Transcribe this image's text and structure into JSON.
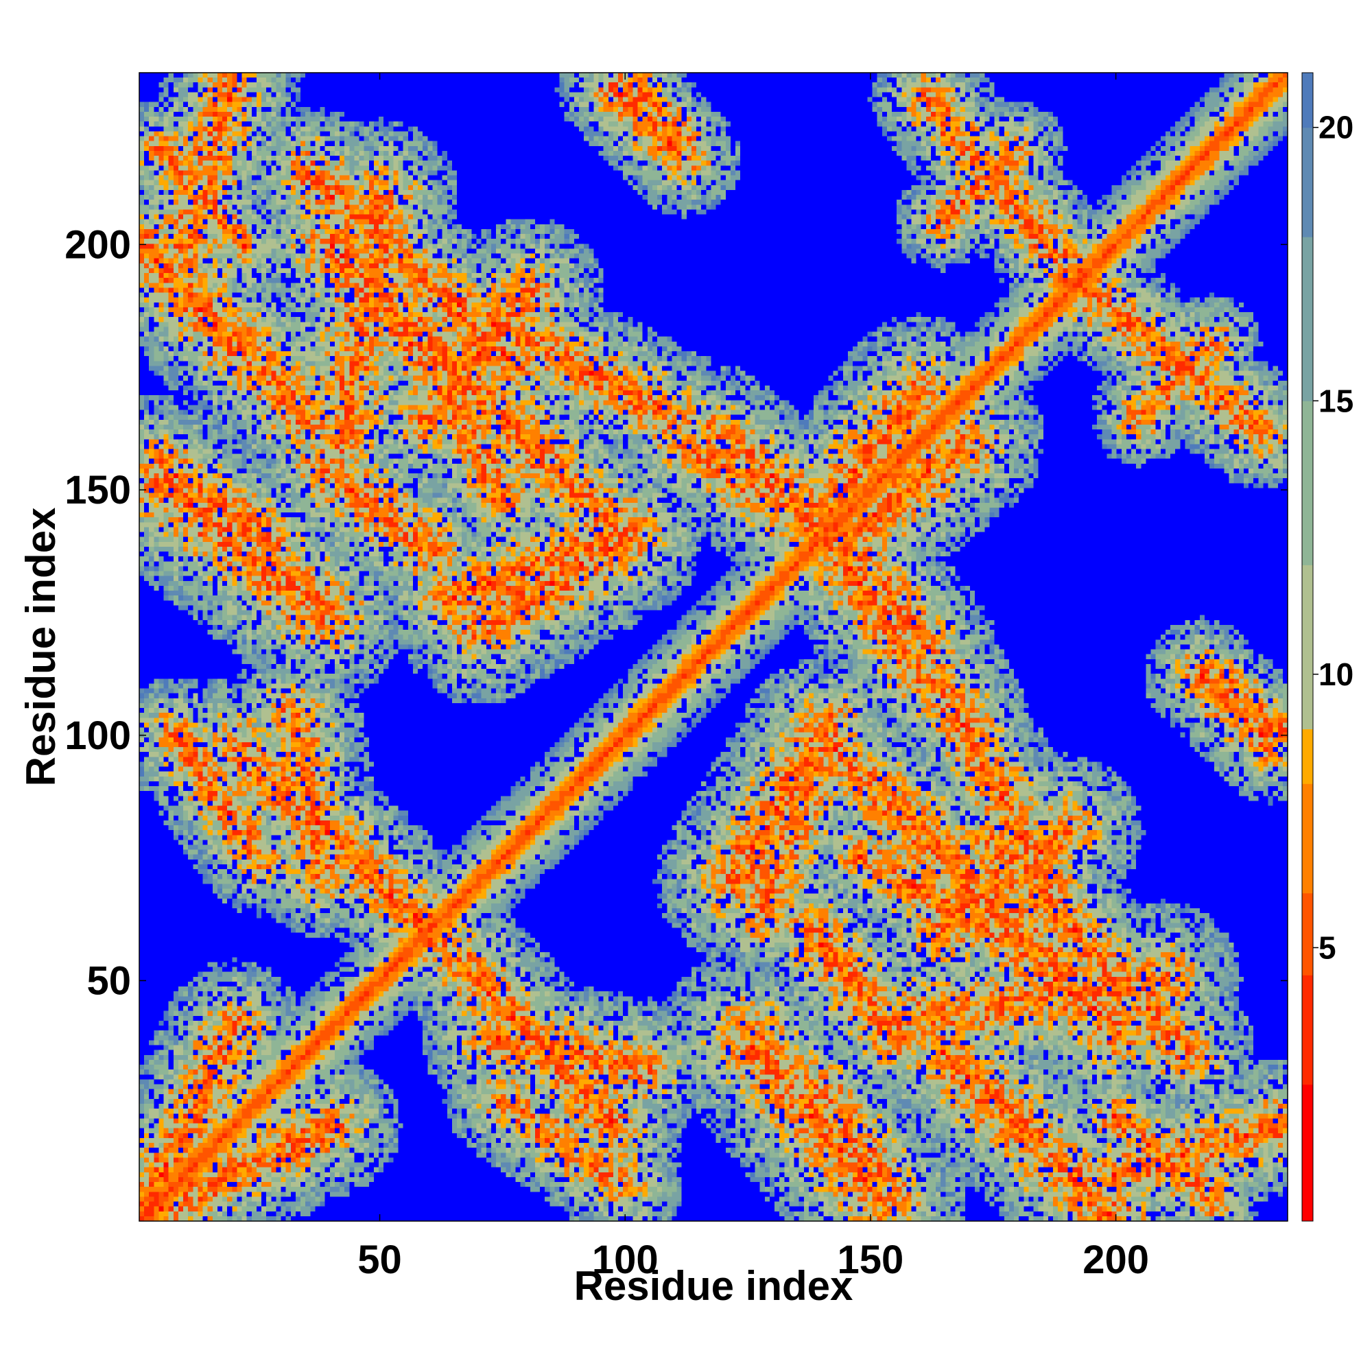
{
  "chart_data": {
    "type": "heatmap",
    "title": "",
    "xlabel": "Residue index",
    "ylabel": "Residue index",
    "xlim": [
      1,
      235
    ],
    "ylim": [
      1,
      235
    ],
    "x_ticks": [
      50,
      100,
      150,
      200
    ],
    "y_ticks": [
      50,
      100,
      150,
      200
    ],
    "x_tick_labels": [
      "50",
      "100",
      "150",
      "200"
    ],
    "y_tick_labels": [
      "50",
      "100",
      "150",
      "200"
    ],
    "n_residues": 235,
    "symmetric": true,
    "colorbar": {
      "min": 0,
      "max": 21,
      "ticks": [
        5,
        10,
        15,
        20
      ],
      "tick_labels": [
        "5",
        "10",
        "15",
        "20"
      ],
      "stops": [
        {
          "value": 0,
          "color": "#ff0000"
        },
        {
          "value": 2.5,
          "color": "#ff2a00"
        },
        {
          "value": 4.5,
          "color": "#ff5500"
        },
        {
          "value": 6,
          "color": "#ff8000"
        },
        {
          "value": 8,
          "color": "#ffaa00"
        },
        {
          "value": 9,
          "color": "#b0c090"
        },
        {
          "value": 12,
          "color": "#8fb596"
        },
        {
          "value": 15,
          "color": "#79a3a3"
        },
        {
          "value": 18,
          "color": "#5f8ab3"
        },
        {
          "value": 20,
          "color": "#4f7bbb"
        },
        {
          "value": 21,
          "color": "#0000ff"
        }
      ],
      "background_color": "#0000ff"
    },
    "diagonal": {
      "from": 1,
      "to": 235,
      "near_distance": 4,
      "width": 12
    },
    "contact_bands": [
      {
        "start": [
          1,
          1
        ],
        "end": [
          20,
          40
        ],
        "width": 14
      },
      {
        "start": [
          1,
          1
        ],
        "end": [
          40,
          20
        ],
        "width": 14
      },
      {
        "start": [
          1,
          200
        ],
        "end": [
          35,
          165
        ],
        "width": 16
      },
      {
        "start": [
          5,
          220
        ],
        "end": [
          22,
          200
        ],
        "width": 10
      },
      {
        "start": [
          35,
          215
        ],
        "end": [
          78,
          175
        ],
        "width": 14
      },
      {
        "start": [
          62,
          190
        ],
        "end": [
          110,
          165
        ],
        "width": 14
      },
      {
        "start": [
          42,
          198
        ],
        "end": [
          60,
          175
        ],
        "width": 12
      },
      {
        "start": [
          60,
          175
        ],
        "end": [
          75,
          148
        ],
        "width": 12
      },
      {
        "start": [
          64,
          128
        ],
        "end": [
          102,
          142
        ],
        "width": 14
      },
      {
        "start": [
          100,
          235
        ],
        "end": [
          112,
          222
        ],
        "width": 9
      },
      {
        "start": [
          140,
          145
        ],
        "end": [
          160,
          170
        ],
        "width": 16
      },
      {
        "start": [
          142,
          140
        ],
        "end": [
          160,
          112
        ],
        "width": 15
      },
      {
        "start": [
          118,
          162
        ],
        "end": [
          140,
          145
        ],
        "width": 14
      },
      {
        "start": [
          140,
          100
        ],
        "end": [
          122,
          70
        ],
        "width": 16
      },
      {
        "start": [
          140,
          100
        ],
        "end": [
          160,
          80
        ],
        "width": 15
      },
      {
        "start": [
          160,
          80
        ],
        "end": [
          200,
          40
        ],
        "width": 18
      },
      {
        "start": [
          165,
          60
        ],
        "end": [
          190,
          80
        ],
        "width": 16
      },
      {
        "start": [
          160,
          42
        ],
        "end": [
          210,
          50
        ],
        "width": 16
      },
      {
        "start": [
          200,
          10
        ],
        "end": [
          235,
          20
        ],
        "width": 14
      },
      {
        "start": [
          190,
          195
        ],
        "end": [
          230,
          162
        ],
        "width": 12
      },
      {
        "start": [
          165,
          205
        ],
        "end": [
          180,
          220
        ],
        "width": 10
      },
      {
        "start": [
          218,
          112
        ],
        "end": [
          232,
          98
        ],
        "width": 12
      },
      {
        "start": [
          20,
          98
        ],
        "end": [
          60,
          60
        ],
        "width": 14
      },
      {
        "start": [
          72,
          38
        ],
        "end": [
          104,
          32
        ],
        "width": 14
      },
      {
        "start": [
          5,
          155
        ],
        "end": [
          27,
          140
        ],
        "width": 14
      },
      {
        "start": [
          38,
          155
        ],
        "end": [
          60,
          138
        ],
        "width": 14
      },
      {
        "start": [
          125,
          38
        ],
        "end": [
          152,
          5
        ],
        "width": 18
      },
      {
        "start": [
          75,
          25
        ],
        "end": [
          100,
          8
        ],
        "width": 12
      }
    ]
  }
}
